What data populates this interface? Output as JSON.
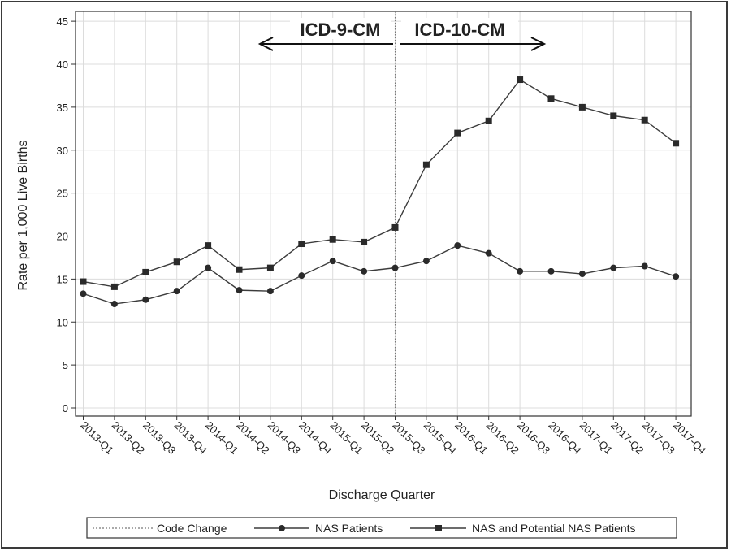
{
  "chart_data": {
    "type": "line",
    "title": "",
    "xlabel": "Discharge Quarter",
    "ylabel": "Rate per 1,000 Live Births",
    "ylim": [
      0,
      45
    ],
    "yticks": [
      0,
      5,
      10,
      15,
      20,
      25,
      30,
      35,
      40,
      45
    ],
    "grid": true,
    "categories": [
      "2013-Q1",
      "2013-Q2",
      "2013-Q3",
      "2013-Q4",
      "2014-Q1",
      "2014-Q2",
      "2014-Q3",
      "2014-Q4",
      "2015-Q1",
      "2015-Q2",
      "2015-Q3",
      "2015-Q4",
      "2016-Q1",
      "2016-Q2",
      "2016-Q3",
      "2016-Q4",
      "2017-Q1",
      "2017-Q2",
      "2017-Q3",
      "2017-Q4"
    ],
    "series": [
      {
        "name": "NAS Patients",
        "marker": "circle",
        "values": [
          13.3,
          12.1,
          12.6,
          13.6,
          16.3,
          13.7,
          13.6,
          15.4,
          17.1,
          15.9,
          16.3,
          17.1,
          18.9,
          18.0,
          15.9,
          15.9,
          15.6,
          16.3,
          16.5,
          15.3
        ]
      },
      {
        "name": "NAS and Potential NAS Patients",
        "marker": "square",
        "values": [
          14.7,
          14.1,
          15.8,
          17.0,
          18.9,
          16.1,
          16.3,
          19.1,
          19.6,
          19.3,
          21.0,
          28.3,
          32.0,
          33.4,
          38.2,
          36.0,
          35.0,
          34.0,
          33.5,
          30.8
        ]
      }
    ],
    "code_change": {
      "label": "Code Change",
      "at_category": "2015-Q3"
    },
    "annotations": {
      "left": "ICD-9-CM",
      "right": "ICD-10-CM"
    },
    "legend_position": "bottom"
  },
  "colors": {
    "line": "#3c3c3c",
    "grid": "#dcdcdc",
    "axis": "#333333"
  }
}
